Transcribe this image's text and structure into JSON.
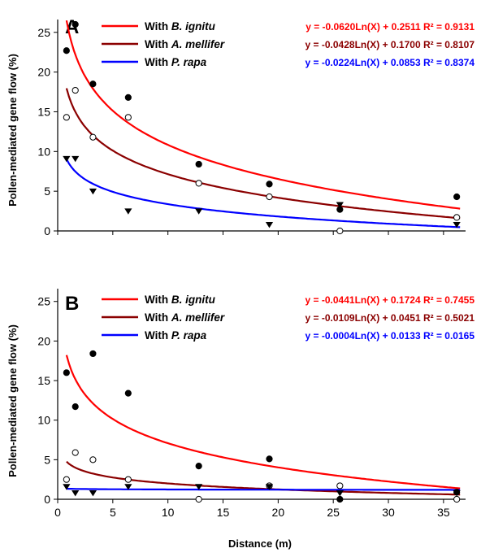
{
  "figure": {
    "x_axis_title": "Distance (m)",
    "y_axis_title": "Pollen-mediated gene flow (%)"
  },
  "chart_data": [
    {
      "panel": "A",
      "type": "scatter",
      "xlim": [
        0,
        37
      ],
      "ylim": [
        0,
        26
      ],
      "xticks": [
        "0",
        "5",
        "10",
        "15",
        "20",
        "25",
        "30",
        "35"
      ],
      "yticks": [
        "0",
        "5",
        "10",
        "15",
        "20",
        "25"
      ],
      "show_x_tick_labels": false,
      "grid": false,
      "legend_position": "top-right",
      "series": [
        {
          "name_prefix": "With ",
          "name_species": "B. ignitu",
          "color": "#ff0000",
          "marker": "filled-circle",
          "equation": "y = -0.0620Ln(X) + 0.2511 R² = 0.9131",
          "fit": {
            "a": -6.2,
            "b": 25.11,
            "x_from": 0.8
          },
          "points": [
            [
              0.8,
              22.7
            ],
            [
              1.6,
              26.0
            ],
            [
              3.2,
              18.5
            ],
            [
              6.4,
              16.8
            ],
            [
              12.8,
              8.4
            ],
            [
              19.2,
              5.9
            ],
            [
              25.6,
              2.7
            ],
            [
              36.2,
              4.3
            ]
          ]
        },
        {
          "name_prefix": "With ",
          "name_species": "A. mellifer",
          "color": "#8b0000",
          "marker": "open-circle",
          "equation": "y = -0.0428Ln(X) + 0.1700 R² = 0.8107",
          "fit": {
            "a": -4.28,
            "b": 17.0,
            "x_from": 0.8
          },
          "points": [
            [
              0.8,
              14.3
            ],
            [
              1.6,
              17.7
            ],
            [
              3.2,
              11.8
            ],
            [
              6.4,
              14.3
            ],
            [
              12.8,
              6.0
            ],
            [
              19.2,
              4.3
            ],
            [
              25.6,
              0.0
            ],
            [
              36.2,
              1.7
            ]
          ]
        },
        {
          "name_prefix": "With ",
          "name_species": "P. rapa",
          "color": "#0000ff",
          "marker": "filled-triangle-down",
          "equation": "y = -0.0224Ln(X) + 0.0853 R² = 0.8374",
          "fit": {
            "a": -2.24,
            "b": 8.53,
            "x_from": 0.8
          },
          "points": [
            [
              0.8,
              9.1
            ],
            [
              1.6,
              9.1
            ],
            [
              3.2,
              5.0
            ],
            [
              6.4,
              2.5
            ],
            [
              12.8,
              2.5
            ],
            [
              19.2,
              0.8
            ],
            [
              25.6,
              3.3
            ],
            [
              36.2,
              0.8
            ]
          ]
        }
      ]
    },
    {
      "panel": "B",
      "type": "scatter",
      "xlim": [
        0,
        37
      ],
      "ylim": [
        0,
        26
      ],
      "xticks": [
        "0",
        "5",
        "10",
        "15",
        "20",
        "25",
        "30",
        "35"
      ],
      "yticks": [
        "0",
        "5",
        "10",
        "15",
        "20",
        "25"
      ],
      "show_x_tick_labels": true,
      "grid": false,
      "legend_position": "top-right",
      "series": [
        {
          "name_prefix": "With ",
          "name_species": "B. ignitu",
          "color": "#ff0000",
          "marker": "filled-circle",
          "equation": "y = -0.0441Ln(X) + 0.1724 R² = 0.7455",
          "fit": {
            "a": -4.41,
            "b": 17.24,
            "x_from": 0.8
          },
          "points": [
            [
              0.8,
              16.0
            ],
            [
              1.6,
              11.7
            ],
            [
              3.2,
              18.4
            ],
            [
              6.4,
              13.4
            ],
            [
              12.8,
              4.2
            ],
            [
              19.2,
              5.1
            ],
            [
              25.6,
              0.0
            ],
            [
              36.2,
              0.9
            ]
          ]
        },
        {
          "name_prefix": "With ",
          "name_species": "A. mellifer",
          "color": "#8b0000",
          "marker": "open-circle",
          "equation": "y = -0.0109Ln(X) + 0.0451 R² = 0.5021",
          "fit": {
            "a": -1.09,
            "b": 4.51,
            "x_from": 0.8
          },
          "points": [
            [
              0.8,
              2.5
            ],
            [
              1.6,
              5.9
            ],
            [
              3.2,
              5.0
            ],
            [
              6.4,
              2.5
            ],
            [
              12.8,
              0.0
            ],
            [
              19.2,
              1.7
            ],
            [
              25.6,
              1.7
            ],
            [
              36.2,
              0.0
            ]
          ]
        },
        {
          "name_prefix": "With ",
          "name_species": "P. rapa",
          "color": "#0000ff",
          "marker": "filled-triangle-down",
          "equation": "y = -0.0004Ln(X) + 0.0133 R² = 0.0165",
          "fit": {
            "a": -0.04,
            "b": 1.33,
            "x_from": 0.8
          },
          "points": [
            [
              0.8,
              1.6
            ],
            [
              1.6,
              0.8
            ],
            [
              3.2,
              0.8
            ],
            [
              6.4,
              1.6
            ],
            [
              12.8,
              1.6
            ],
            [
              19.2,
              1.6
            ],
            [
              25.6,
              0.8
            ],
            [
              36.2,
              0.8
            ]
          ]
        }
      ]
    }
  ]
}
